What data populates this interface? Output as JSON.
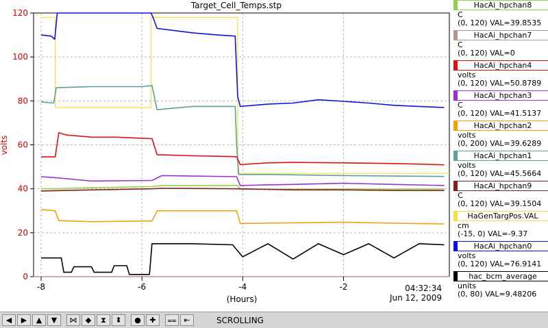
{
  "chart_data": {
    "type": "line",
    "title": "Target_Cell_Temps.stp",
    "xlabel": "(Hours)",
    "ylabel": "volts",
    "xlim": [
      -8.15,
      0.1
    ],
    "ylim": [
      0,
      120
    ],
    "x_ticks": [
      -8,
      -6,
      -4,
      -2
    ],
    "y_ticks": [
      0,
      20,
      40,
      60,
      80,
      100,
      120
    ],
    "x_tick_labels": [
      "-8",
      "-6",
      "-4",
      "-2"
    ],
    "y_tick_labels": [
      "0",
      "20",
      "40",
      "60",
      "80",
      "100",
      "120"
    ],
    "grid": true,
    "timestamp_time": "04:32:34",
    "timestamp_date": "Jun 12, 2009",
    "series": [
      {
        "name": "HacAi_hpchan8",
        "color": "#8fd14f",
        "unit": "C",
        "range": "(0, 120) VAL=39.8535",
        "x": [
          -8.0,
          -7.7,
          -7.0,
          -5.8,
          -5.6,
          -4.1,
          -4.05,
          -3.0,
          -2.0,
          -1.0,
          0.0
        ],
        "y": [
          40.0,
          40.0,
          40.5,
          41.0,
          41.5,
          41.5,
          39.8,
          39.8,
          39.9,
          39.8,
          39.9
        ]
      },
      {
        "name": "HacAi_hpchan7",
        "color": "#b5968e",
        "unit": "C",
        "range": "(0, 120) VAL=0",
        "x": [
          -8.15,
          0.1
        ],
        "y": [
          0,
          0
        ]
      },
      {
        "name": "HacAi_hpchan4",
        "color": "#e01010",
        "unit": "volts",
        "range": "(0, 120) VAL=50.8789",
        "x": [
          -8.0,
          -7.72,
          -7.65,
          -7.5,
          -7.0,
          -6.5,
          -6.0,
          -5.8,
          -5.7,
          -5.0,
          -4.5,
          -4.12,
          -4.05,
          -3.5,
          -3.0,
          -2.0,
          -1.0,
          -0.5,
          0.0
        ],
        "y": [
          54.5,
          54.5,
          65.5,
          64.5,
          63.5,
          63.5,
          63.0,
          62.8,
          55.5,
          55.0,
          54.8,
          54.6,
          51.0,
          51.8,
          52.0,
          51.8,
          51.5,
          51.2,
          50.9
        ]
      },
      {
        "name": "HacAi_hpchan3",
        "color": "#9a2fd6",
        "unit": "C",
        "range": "(0, 120) VAL=41.5137",
        "x": [
          -8.0,
          -7.7,
          -7.0,
          -5.8,
          -5.6,
          -4.12,
          -4.05,
          -3.5,
          -3.0,
          -2.0,
          -1.0,
          0.0
        ],
        "y": [
          45.5,
          45.0,
          43.5,
          43.8,
          46.0,
          45.5,
          41.5,
          41.8,
          42.0,
          42.5,
          42.0,
          41.5
        ]
      },
      {
        "name": "HacAi_hpchan2",
        "color": "#f2a010",
        "unit": "volts",
        "range": "(0, 200) VAL=39.6289",
        "x": [
          -8.0,
          -7.72,
          -7.65,
          -7.0,
          -6.0,
          -5.8,
          -5.7,
          -5.0,
          -4.12,
          -4.05,
          -3.0,
          -2.0,
          -1.0,
          0.0
        ],
        "y": [
          30.5,
          30.0,
          25.5,
          25.0,
          25.3,
          25.3,
          30.0,
          30.0,
          30.0,
          24.2,
          24.5,
          24.8,
          24.3,
          24.0
        ]
      },
      {
        "name": "HacAi_hpchan1",
        "color": "#5f9e9e",
        "unit": "volts",
        "range": "(0, 120) VAL=45.5664",
        "x": [
          -8.0,
          -7.75,
          -7.7,
          -7.0,
          -6.0,
          -5.8,
          -5.7,
          -5.0,
          -4.15,
          -4.12,
          -4.08,
          -3.5,
          -2.0,
          -1.0,
          0.0
        ],
        "y": [
          79.5,
          79.0,
          86.0,
          86.5,
          86.5,
          87.0,
          76.0,
          77.5,
          77.5,
          60.0,
          46.5,
          46.5,
          46.0,
          45.8,
          45.6
        ]
      },
      {
        "name": "HacAi_hpchan9",
        "color": "#8b1a1a",
        "unit": "C",
        "range": "(0, 120) VAL=39.1504",
        "x": [
          -8.0,
          -7.0,
          -5.8,
          -5.6,
          -4.1,
          -3.0,
          -2.0,
          -1.0,
          0.0
        ],
        "y": [
          39.0,
          39.5,
          40.0,
          40.2,
          40.0,
          39.5,
          39.5,
          39.2,
          39.2
        ]
      },
      {
        "name": "HaGenTargPos.VAL",
        "color": "#f2e040",
        "unit": "cm",
        "range": "(-15, 0) VAL=-9.37",
        "x": [
          -8.0,
          -7.72,
          -7.72,
          -5.82,
          -5.82,
          -4.1,
          -4.1,
          0.1
        ],
        "y": [
          118,
          118,
          77,
          77,
          118,
          118,
          47,
          47
        ]
      },
      {
        "name": "HacAi_hpchan0",
        "color": "#1010e0",
        "unit": "volts",
        "range": "(0, 120) VAL=76.9141",
        "x": [
          -8.0,
          -7.8,
          -7.73,
          -7.68,
          -5.82,
          -5.78,
          -5.7,
          -5.0,
          -4.5,
          -4.15,
          -4.1,
          -4.05,
          -3.5,
          -3.0,
          -2.5,
          -2.0,
          -1.5,
          -1.0,
          -0.5,
          0.0
        ],
        "y": [
          110,
          109.5,
          108,
          120,
          120,
          118,
          113,
          111,
          110,
          109.5,
          82,
          77.5,
          78.5,
          79.0,
          80.5,
          79.8,
          79.0,
          78.0,
          77.5,
          77.0
        ]
      },
      {
        "name": "hac_bcm_average",
        "color": "#000000",
        "unit": "units",
        "range": "(0, 80) VAL=9.48206",
        "x": [
          -8.0,
          -7.6,
          -7.55,
          -7.4,
          -7.35,
          -7.0,
          -6.95,
          -6.6,
          -6.55,
          -6.3,
          -6.25,
          -5.85,
          -5.8,
          -5.0,
          -4.2,
          -4.0,
          -3.5,
          -3.0,
          -2.5,
          -2.0,
          -1.5,
          -1.0,
          -0.5,
          0.0
        ],
        "y": [
          8.5,
          8.5,
          2.0,
          2.0,
          4.5,
          4.5,
          2.0,
          2.0,
          5.0,
          5.0,
          1.0,
          1.0,
          15.0,
          15.0,
          14.5,
          9.0,
          15.0,
          8.0,
          15.0,
          10.0,
          15.0,
          8.5,
          15.0,
          14.5
        ]
      }
    ]
  },
  "toolbar": {
    "status": "SCROLLING",
    "buttons": [
      {
        "name": "scroll-left-button",
        "glyph": "◀"
      },
      {
        "name": "scroll-right-button",
        "glyph": "▶"
      },
      {
        "name": "scroll-up-button",
        "glyph": "▲"
      },
      {
        "name": "scroll-down-button",
        "glyph": "▼"
      },
      {
        "name": "zoom-in-x-button",
        "glyph": "⋈"
      },
      {
        "name": "zoom-out-x-button",
        "glyph": "◆"
      },
      {
        "name": "zoom-in-y-button",
        "glyph": "⧗"
      },
      {
        "name": "zoom-out-y-button",
        "glyph": "⬍"
      },
      {
        "name": "settings-button",
        "glyph": "●"
      },
      {
        "name": "add-pen-button",
        "glyph": "✚"
      },
      {
        "name": "auto-scale-button",
        "glyph": "⩵"
      },
      {
        "name": "scroll-mode-button",
        "glyph": "⇤"
      }
    ]
  }
}
